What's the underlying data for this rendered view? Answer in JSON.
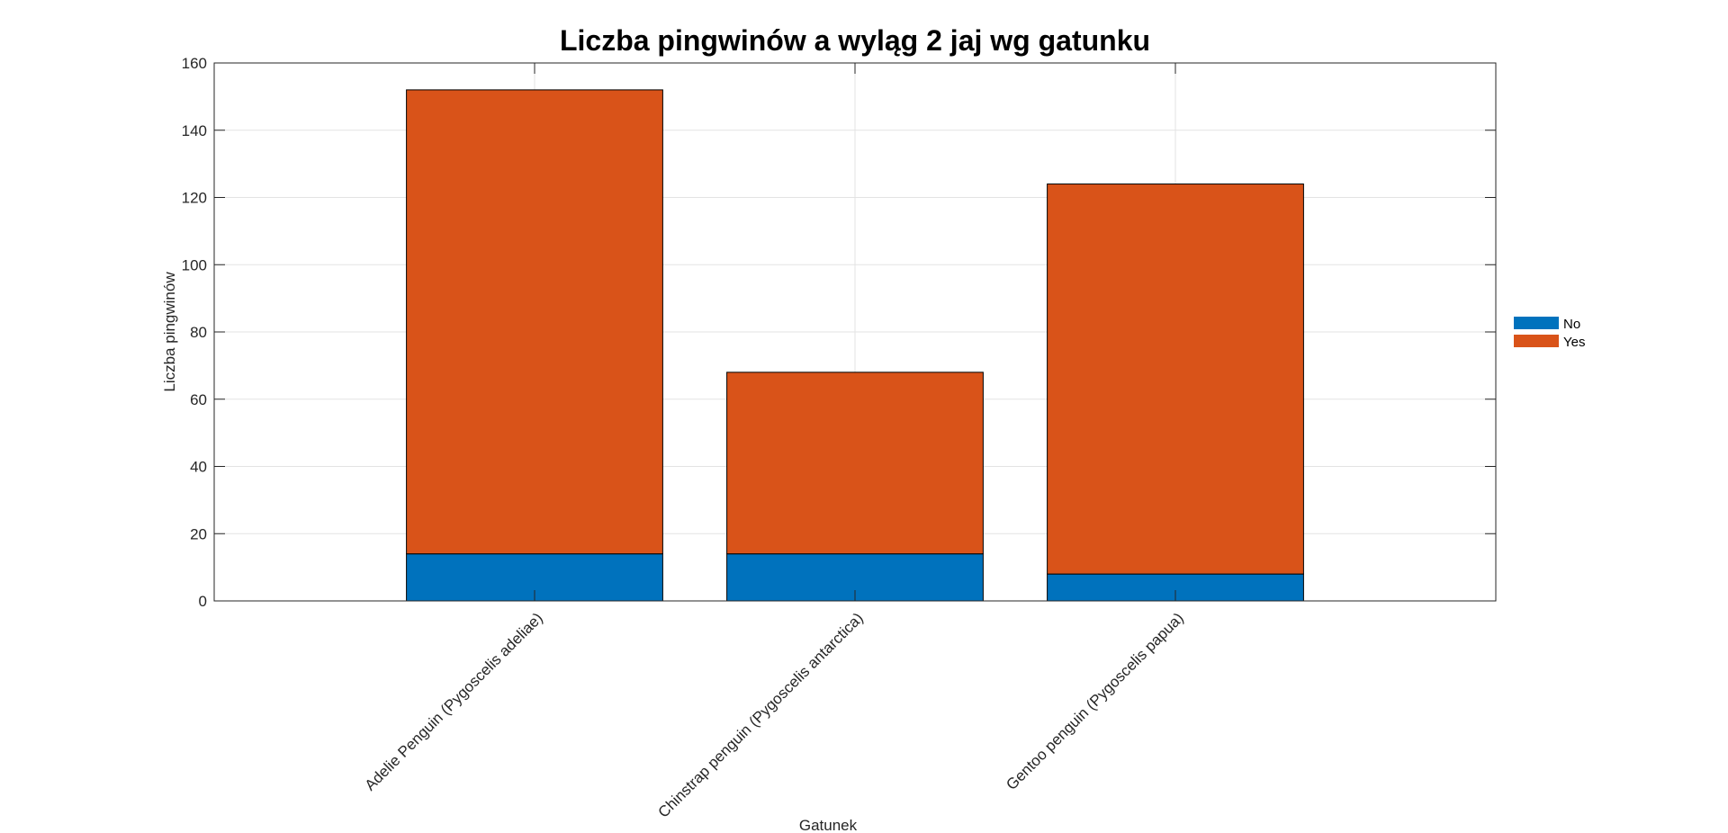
{
  "chart_data": {
    "type": "bar",
    "stacked": true,
    "title": "Liczba pingwinów a wyląg 2 jaj wg gatunku",
    "xlabel": "Gatunek",
    "ylabel": "Liczba pingwinów",
    "categories": [
      "Adelie Penguin (Pygoscelis adeliae)",
      "Chinstrap penguin (Pygoscelis antarctica)",
      "Gentoo penguin (Pygoscelis papua)"
    ],
    "series": [
      {
        "name": "No",
        "values": [
          14,
          14,
          8
        ],
        "color": "#0072BD"
      },
      {
        "name": "Yes",
        "values": [
          138,
          54,
          116
        ],
        "color": "#D95319"
      }
    ],
    "ylim": [
      0,
      160
    ],
    "yticks": [
      0,
      20,
      40,
      60,
      80,
      100,
      120,
      140,
      160
    ],
    "grid": true,
    "legend_position": "right"
  }
}
